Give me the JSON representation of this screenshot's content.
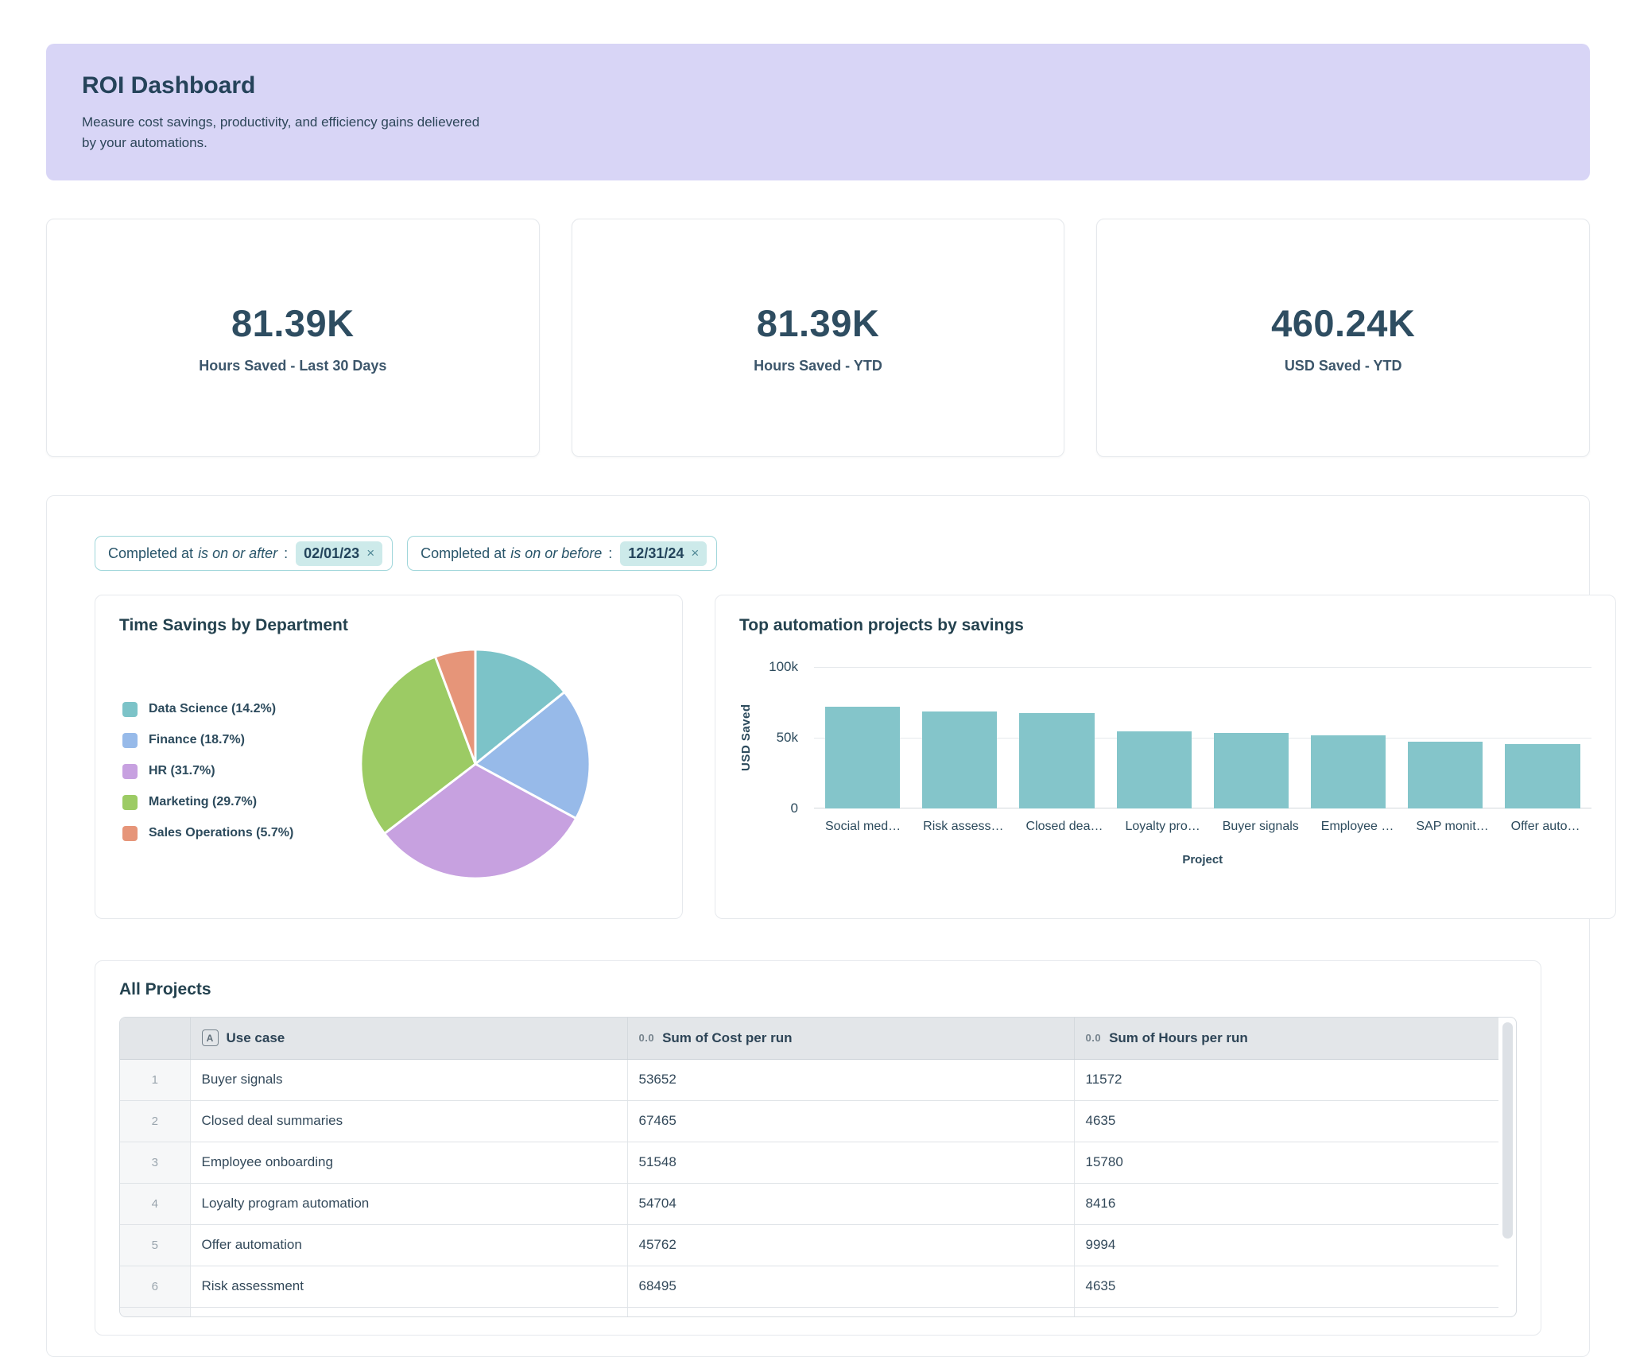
{
  "header": {
    "title": "ROI Dashboard",
    "subtitle": "Measure cost savings, productivity, and efficiency gains delievered by your automations."
  },
  "kpis": [
    {
      "value": "81.39K",
      "label": "Hours Saved - Last 30 Days"
    },
    {
      "value": "81.39K",
      "label": "Hours Saved - YTD"
    },
    {
      "value": "460.24K",
      "label": "USD Saved - YTD"
    }
  ],
  "filters": [
    {
      "field": "Completed at",
      "operator": "is on or after",
      "colon": ":",
      "value": "02/01/23",
      "remove_icon": "×"
    },
    {
      "field": "Completed at",
      "operator": "is on or before",
      "colon": ":",
      "value": "12/31/24",
      "remove_icon": "×"
    }
  ],
  "chart_data": [
    {
      "type": "pie",
      "title": "Time Savings by Department",
      "legend_position": "left",
      "slices": [
        {
          "label": "Data Science",
          "pct": 14.2,
          "color": "#7cc3c8",
          "legend": "Data Science (14.2%)"
        },
        {
          "label": "Finance",
          "pct": 18.7,
          "color": "#97bae9",
          "legend": "Finance (18.7%)"
        },
        {
          "label": "HR",
          "pct": 31.7,
          "color": "#c7a1e0",
          "legend": "HR (31.7%)"
        },
        {
          "label": "Marketing",
          "pct": 29.7,
          "color": "#9ccb64",
          "legend": "Marketing (29.7%)"
        },
        {
          "label": "Sales Operations",
          "pct": 5.7,
          "color": "#e69579",
          "legend": "Sales Operations (5.7%)"
        }
      ]
    },
    {
      "type": "bar",
      "title": "Top automation projects by savings",
      "xlabel": "Project",
      "ylabel": "USD Saved",
      "ylim": [
        0,
        100000
      ],
      "yticks": [
        {
          "label": "100k",
          "value": 100000
        },
        {
          "label": "50k",
          "value": 50000
        },
        {
          "label": "0",
          "value": 0
        }
      ],
      "grid": true,
      "bar_color": "#84c5ca",
      "categories": [
        "Social med…",
        "Risk assess…",
        "Closed dea…",
        "Loyalty pro…",
        "Buyer signals",
        "Employee …",
        "SAP monit…",
        "Offer auto…"
      ],
      "values": [
        72000,
        68495,
        67465,
        54704,
        53652,
        51548,
        47000,
        45762
      ]
    }
  ],
  "table": {
    "title": "All Projects",
    "columns": [
      {
        "icon": "text-field-icon",
        "icon_glyph": "A",
        "label": "Use case"
      },
      {
        "icon": "number-field-icon",
        "icon_glyph": "0.0",
        "label": "Sum of Cost per run"
      },
      {
        "icon": "number-field-icon",
        "icon_glyph": "0.0",
        "label": "Sum of Hours per run"
      }
    ],
    "rows": [
      {
        "num": "1",
        "use_case": "Buyer signals",
        "cost": "53652",
        "hours": "11572"
      },
      {
        "num": "2",
        "use_case": "Closed deal summaries",
        "cost": "67465",
        "hours": "4635"
      },
      {
        "num": "3",
        "use_case": "Employee onboarding",
        "cost": "51548",
        "hours": "15780"
      },
      {
        "num": "4",
        "use_case": "Loyalty program automation",
        "cost": "54704",
        "hours": "8416"
      },
      {
        "num": "5",
        "use_case": "Offer automation",
        "cost": "45762",
        "hours": "9994"
      },
      {
        "num": "6",
        "use_case": "Risk assessment",
        "cost": "68495",
        "hours": "4635"
      }
    ]
  },
  "colors": {
    "banner_bg": "#d8d5f6",
    "heading_text": "#25435a",
    "accent_teal": "#84c5ca",
    "chip_border": "#9fd6da",
    "chip_badge_bg": "#cdeaea",
    "table_header_bg": "#e3e6e9"
  }
}
